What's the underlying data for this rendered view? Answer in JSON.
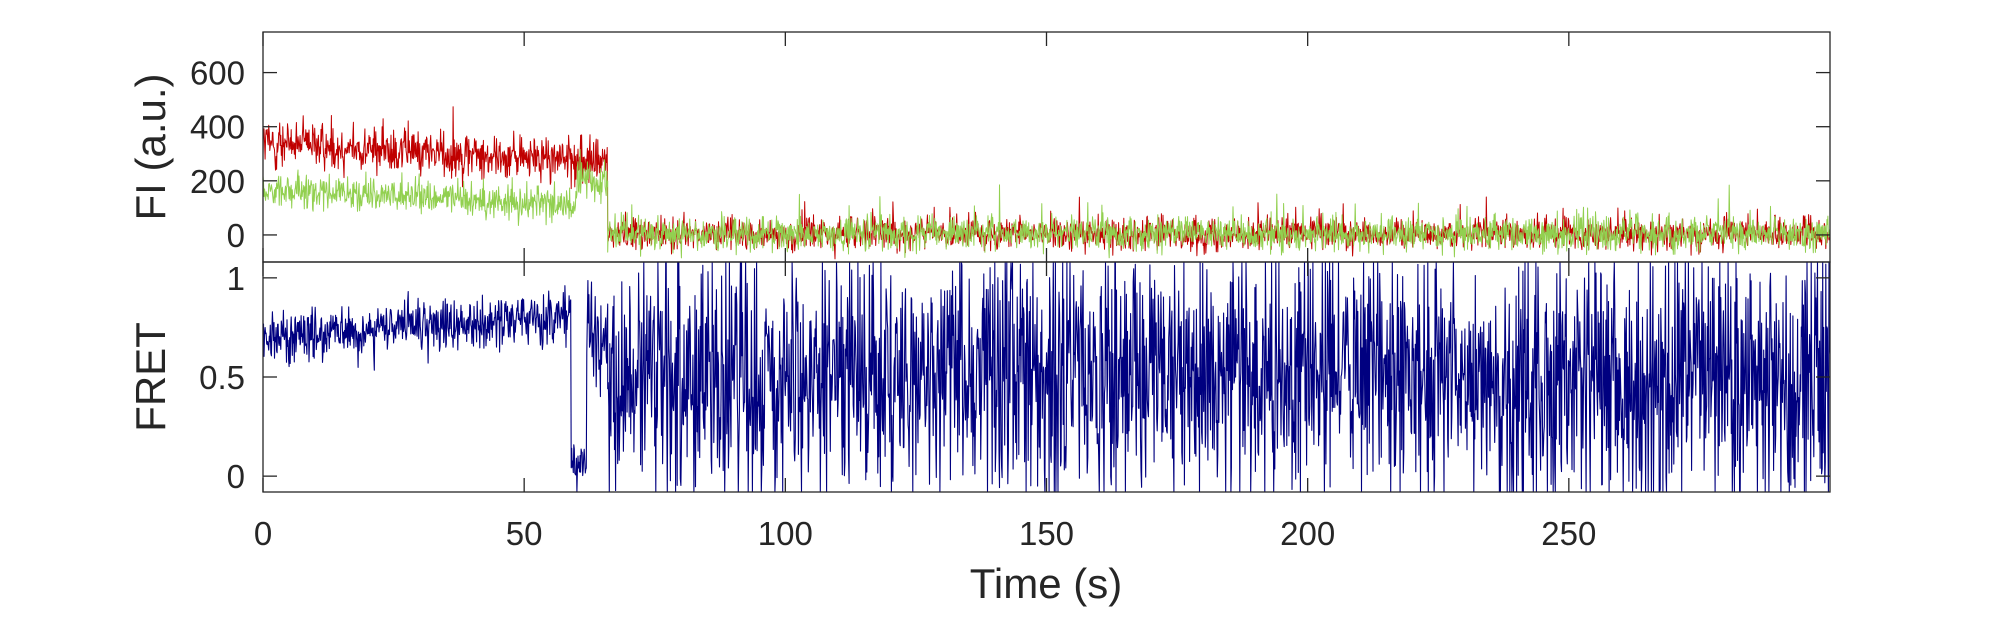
{
  "chart_data": [
    {
      "type": "line",
      "ylabel": "FI (a.u.)",
      "xlim": [
        0,
        300
      ],
      "ylim": [
        -100,
        750
      ],
      "yticks": [
        0,
        200,
        400,
        600
      ],
      "grid": false,
      "series": [
        {
          "color": "#c00000",
          "segments": [
            {
              "x": [
                0,
                66
              ],
              "mean": 300,
              "noise": 60,
              "spike": 480,
              "trend": [
                340,
                270
              ]
            },
            {
              "x": [
                66,
                300
              ],
              "mean": 5,
              "noise": 40,
              "spike": 150
            }
          ]
        },
        {
          "color": "#92d050",
          "segments": [
            {
              "x": [
                0,
                60
              ],
              "mean": 130,
              "noise": 45,
              "trend": [
                170,
                110
              ]
            },
            {
              "x": [
                60,
                66
              ],
              "mean": 200,
              "noise": 60
            },
            {
              "x": [
                66,
                300
              ],
              "mean": 5,
              "noise": 45,
              "spike": 190
            }
          ]
        }
      ]
    },
    {
      "type": "line",
      "xlabel": "Time (s)",
      "ylabel": "FRET",
      "xlim": [
        0,
        300
      ],
      "ylim": [
        -0.08,
        1.08
      ],
      "yticks": [
        0,
        0.5,
        1
      ],
      "xticks": [
        0,
        50,
        100,
        150,
        200,
        250
      ],
      "grid": false,
      "series": [
        {
          "color": "#000080",
          "segments": [
            {
              "x": [
                0,
                59
              ],
              "mean": 0.75,
              "noise": 0.09,
              "trend": [
                0.7,
                0.8
              ]
            },
            {
              "x": [
                59,
                62
              ],
              "mean": 0.05,
              "noise": 0.1
            },
            {
              "x": [
                62,
                66
              ],
              "mean": 0.7,
              "noise": 0.2
            },
            {
              "x": [
                66,
                300
              ],
              "mean": 0.5,
              "noise": 0.45
            }
          ]
        }
      ]
    }
  ]
}
